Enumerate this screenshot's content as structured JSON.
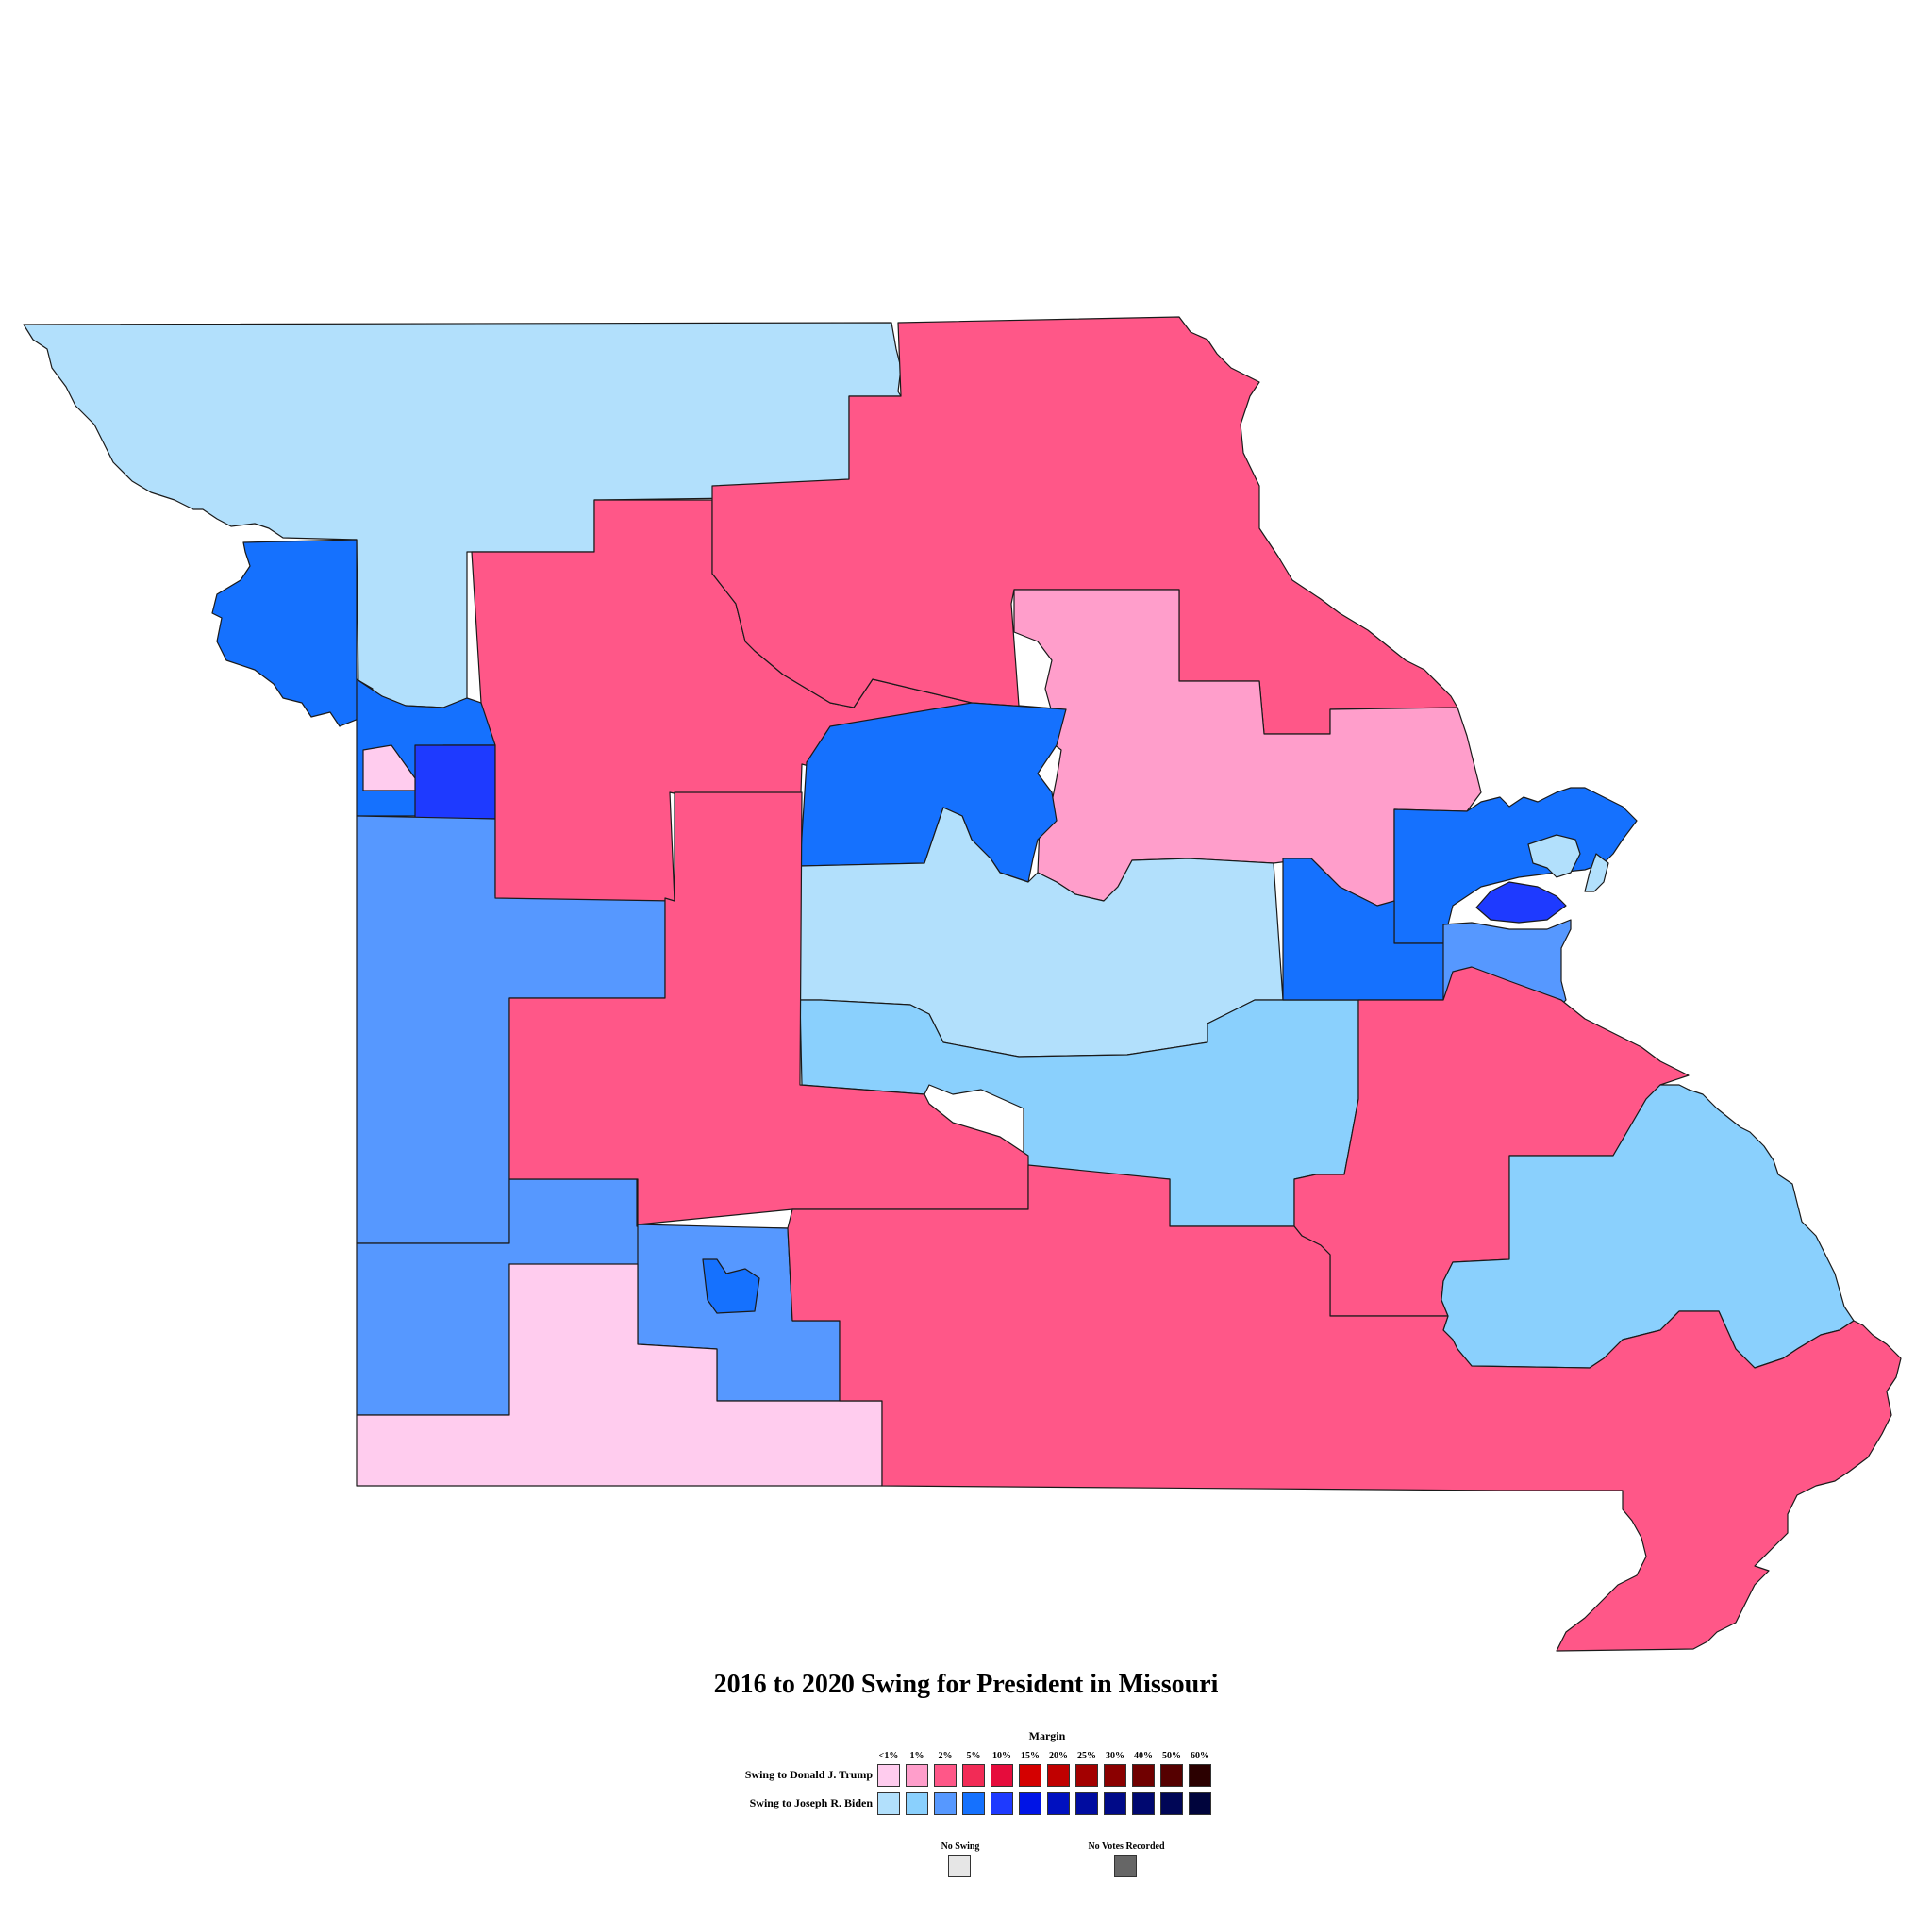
{
  "title": "2016 to 2020 Swing for President in Missouri",
  "legend": {
    "margin_label": "Margin",
    "ticks": [
      "<1%",
      "1%",
      "2%",
      "5%",
      "10%",
      "15%",
      "20%",
      "25%",
      "30%",
      "40%",
      "50%",
      "60%"
    ],
    "trump_label": "Swing to Donald J. Trump",
    "biden_label": "Swing to Joseph R. Biden",
    "trump_colors": [
      "#ffccee",
      "#ff9ecb",
      "#ff5788",
      "#f22b56",
      "#e60c3c",
      "#d40000",
      "#c00000",
      "#a30000",
      "#8b0000",
      "#700000",
      "#550000",
      "#2b0000"
    ],
    "biden_colors": [
      "#b2e0fc",
      "#8ad0fd",
      "#5698ff",
      "#1571fe",
      "#1e3aff",
      "#0014e6",
      "#0010c0",
      "#000ca0",
      "#000a88",
      "#000870",
      "#000656",
      "#00043c"
    ],
    "no_swing_label": "No Swing",
    "no_swing_color": "#e6e6e6",
    "no_votes_label": "No Votes Recorded",
    "no_votes_color": "#666666"
  }
}
